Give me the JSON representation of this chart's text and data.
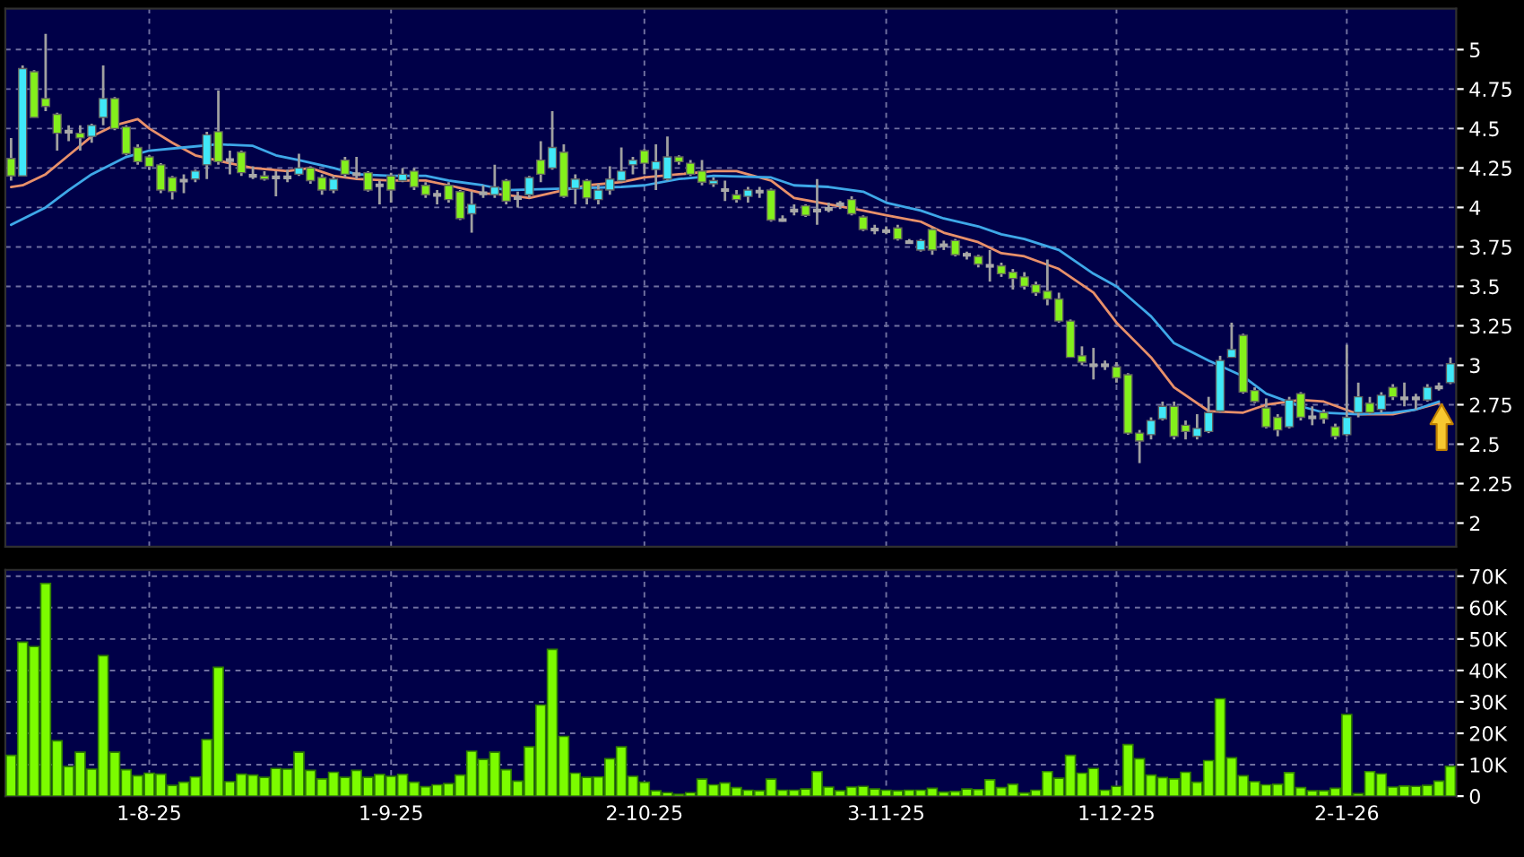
{
  "chart_data": [
    {
      "type": "candlestick",
      "categories": [
        null,
        null,
        null,
        null,
        null,
        null,
        null,
        null,
        null,
        null,
        null,
        null,
        null,
        null,
        null,
        null,
        null,
        null,
        null,
        null,
        null,
        null,
        null,
        null,
        null,
        null,
        null,
        null,
        null,
        null,
        null,
        null,
        null,
        null,
        null,
        null,
        null,
        null,
        null,
        null,
        null,
        null,
        null,
        null,
        null,
        null,
        null,
        null,
        null,
        null,
        null,
        null,
        null,
        null,
        null,
        null,
        null,
        null,
        null,
        null,
        null,
        null,
        null,
        null,
        null,
        null,
        null,
        null,
        null,
        null,
        null,
        null,
        null,
        null,
        null,
        null,
        null,
        null,
        null,
        null,
        null,
        null,
        null,
        null,
        null,
        null,
        null,
        null,
        null,
        null,
        null,
        null,
        null,
        null,
        null,
        null,
        null,
        null,
        null,
        null,
        null,
        null,
        null,
        null,
        null,
        null,
        null,
        null,
        null,
        null,
        null,
        null,
        null,
        null,
        null,
        null,
        null,
        null,
        null,
        null,
        null,
        null,
        null,
        null,
        null,
        null
      ],
      "ohlc": [
        [
          4.31,
          4.44,
          4.17,
          4.2
        ],
        [
          4.2,
          4.9,
          4.2,
          4.88
        ],
        [
          4.86,
          4.87,
          4.57,
          4.57
        ],
        [
          4.69,
          5.1,
          4.61,
          4.64
        ],
        [
          4.59,
          4.6,
          4.36,
          4.47
        ],
        [
          4.48,
          4.52,
          4.42,
          4.48
        ],
        [
          4.47,
          4.52,
          4.36,
          4.44
        ],
        [
          4.45,
          4.53,
          4.41,
          4.52
        ],
        [
          4.57,
          4.9,
          4.52,
          4.69
        ],
        [
          4.69,
          4.7,
          4.49,
          4.5
        ],
        [
          4.51,
          4.52,
          4.33,
          4.34
        ],
        [
          4.38,
          4.4,
          4.27,
          4.29
        ],
        [
          4.32,
          4.33,
          4.24,
          4.26
        ],
        [
          4.27,
          4.28,
          4.09,
          4.11
        ],
        [
          4.19,
          4.2,
          4.05,
          4.1
        ],
        [
          4.17,
          4.21,
          4.09,
          4.17
        ],
        [
          4.18,
          4.24,
          4.16,
          4.23
        ],
        [
          4.27,
          4.48,
          4.18,
          4.46
        ],
        [
          4.48,
          4.74,
          4.27,
          4.29
        ],
        [
          4.3,
          4.36,
          4.21,
          4.3
        ],
        [
          4.35,
          4.36,
          4.2,
          4.22
        ],
        [
          4.2,
          4.26,
          4.18,
          4.2
        ],
        [
          4.2,
          4.23,
          4.17,
          4.18
        ],
        [
          4.19,
          4.23,
          4.07,
          4.19
        ],
        [
          4.19,
          4.24,
          4.16,
          4.19
        ],
        [
          4.21,
          4.34,
          4.2,
          4.25
        ],
        [
          4.25,
          4.26,
          4.15,
          4.17
        ],
        [
          4.19,
          4.21,
          4.08,
          4.11
        ],
        [
          4.11,
          4.2,
          4.09,
          4.18
        ],
        [
          4.3,
          4.32,
          4.19,
          4.21
        ],
        [
          4.21,
          4.32,
          4.18,
          4.21
        ],
        [
          4.22,
          4.23,
          4.1,
          4.11
        ],
        [
          4.14,
          4.17,
          4.02,
          4.14
        ],
        [
          4.2,
          4.22,
          4.03,
          4.11
        ],
        [
          4.17,
          4.25,
          4.16,
          4.21
        ],
        [
          4.23,
          4.25,
          4.11,
          4.13
        ],
        [
          4.14,
          4.16,
          4.06,
          4.08
        ],
        [
          4.08,
          4.11,
          4.02,
          4.08
        ],
        [
          4.14,
          4.16,
          4.03,
          4.05
        ],
        [
          4.1,
          4.11,
          3.92,
          3.93
        ],
        [
          3.96,
          4.1,
          3.84,
          4.02
        ],
        [
          4.09,
          4.14,
          4.06,
          4.09
        ],
        [
          4.08,
          4.27,
          4.06,
          4.13
        ],
        [
          4.17,
          4.18,
          4.02,
          4.04
        ],
        [
          4.06,
          4.1,
          4.0,
          4.06
        ],
        [
          4.08,
          4.2,
          4.06,
          4.19
        ],
        [
          4.3,
          4.42,
          4.16,
          4.21
        ],
        [
          4.25,
          4.61,
          4.24,
          4.38
        ],
        [
          4.35,
          4.4,
          4.06,
          4.07
        ],
        [
          4.12,
          4.21,
          4.02,
          4.18
        ],
        [
          4.17,
          4.18,
          4.02,
          4.06
        ],
        [
          4.05,
          4.15,
          4.02,
          4.11
        ],
        [
          4.11,
          4.26,
          4.08,
          4.18
        ],
        [
          4.17,
          4.38,
          4.16,
          4.23
        ],
        [
          4.27,
          4.32,
          4.21,
          4.3
        ],
        [
          4.36,
          4.37,
          4.21,
          4.28
        ],
        [
          4.24,
          4.4,
          4.11,
          4.29
        ],
        [
          4.18,
          4.45,
          4.17,
          4.32
        ],
        [
          4.32,
          4.33,
          4.27,
          4.29
        ],
        [
          4.28,
          4.3,
          4.2,
          4.21
        ],
        [
          4.23,
          4.3,
          4.14,
          4.16
        ],
        [
          4.15,
          4.19,
          4.13,
          4.17
        ],
        [
          4.11,
          4.17,
          4.04,
          4.11
        ],
        [
          4.08,
          4.11,
          4.03,
          4.05
        ],
        [
          4.07,
          4.13,
          4.03,
          4.11
        ],
        [
          4.1,
          4.13,
          4.06,
          4.1
        ],
        [
          4.11,
          4.12,
          3.91,
          3.92
        ],
        [
          3.92,
          3.95,
          3.91,
          3.92
        ],
        [
          3.98,
          4.02,
          3.95,
          3.98
        ],
        [
          4.01,
          4.02,
          3.94,
          3.95
        ],
        [
          3.98,
          4.18,
          3.89,
          3.98
        ],
        [
          3.99,
          4.03,
          3.97,
          3.99
        ],
        [
          4.02,
          4.04,
          3.99,
          4.02
        ],
        [
          4.05,
          4.07,
          3.95,
          3.96
        ],
        [
          3.94,
          3.95,
          3.85,
          3.86
        ],
        [
          3.86,
          3.89,
          3.83,
          3.86
        ],
        [
          3.85,
          3.88,
          3.83,
          3.85
        ],
        [
          3.87,
          3.89,
          3.79,
          3.8
        ],
        [
          3.78,
          3.8,
          3.77,
          3.78
        ],
        [
          3.73,
          3.8,
          3.72,
          3.79
        ],
        [
          3.86,
          3.87,
          3.7,
          3.73
        ],
        [
          3.76,
          3.79,
          3.73,
          3.76
        ],
        [
          3.79,
          3.8,
          3.69,
          3.7
        ],
        [
          3.7,
          3.72,
          3.67,
          3.7
        ],
        [
          3.69,
          3.7,
          3.62,
          3.64
        ],
        [
          3.63,
          3.73,
          3.53,
          3.63
        ],
        [
          3.63,
          3.65,
          3.56,
          3.58
        ],
        [
          3.59,
          3.61,
          3.48,
          3.55
        ],
        [
          3.56,
          3.59,
          3.48,
          3.5
        ],
        [
          3.51,
          3.53,
          3.44,
          3.46
        ],
        [
          3.47,
          3.67,
          3.38,
          3.42
        ],
        [
          3.42,
          3.46,
          3.27,
          3.28
        ],
        [
          3.28,
          3.29,
          3.05,
          3.05
        ],
        [
          3.06,
          3.12,
          3.0,
          3.02
        ],
        [
          3.0,
          3.11,
          2.91,
          3.0
        ],
        [
          3.0,
          3.03,
          2.97,
          3.0
        ],
        [
          2.99,
          3.02,
          2.89,
          2.92
        ],
        [
          2.94,
          2.95,
          2.56,
          2.57
        ],
        [
          2.57,
          2.59,
          2.38,
          2.52
        ],
        [
          2.56,
          2.67,
          2.53,
          2.65
        ],
        [
          2.66,
          2.77,
          2.65,
          2.74
        ],
        [
          2.74,
          2.77,
          2.53,
          2.55
        ],
        [
          2.62,
          2.65,
          2.53,
          2.58
        ],
        [
          2.55,
          2.69,
          2.53,
          2.6
        ],
        [
          2.58,
          2.8,
          2.57,
          2.7
        ],
        [
          2.71,
          3.06,
          2.7,
          3.03
        ],
        [
          3.05,
          3.27,
          3.05,
          3.1
        ],
        [
          3.19,
          3.2,
          2.82,
          2.83
        ],
        [
          2.84,
          2.86,
          2.76,
          2.77
        ],
        [
          2.73,
          2.79,
          2.6,
          2.61
        ],
        [
          2.67,
          2.69,
          2.55,
          2.59
        ],
        [
          2.61,
          2.8,
          2.6,
          2.78
        ],
        [
          2.82,
          2.83,
          2.65,
          2.67
        ],
        [
          2.67,
          2.74,
          2.62,
          2.67
        ],
        [
          2.7,
          2.72,
          2.63,
          2.66
        ],
        [
          2.61,
          2.63,
          2.53,
          2.55
        ],
        [
          2.56,
          3.13,
          2.55,
          2.67
        ],
        [
          2.7,
          2.89,
          2.67,
          2.8
        ],
        [
          2.76,
          2.8,
          2.69,
          2.7
        ],
        [
          2.72,
          2.83,
          2.7,
          2.81
        ],
        [
          2.86,
          2.88,
          2.78,
          2.8
        ],
        [
          2.79,
          2.89,
          2.74,
          2.79
        ],
        [
          2.79,
          2.82,
          2.72,
          2.79
        ],
        [
          2.78,
          2.88,
          2.77,
          2.86
        ],
        [
          2.86,
          2.89,
          2.84,
          2.86
        ],
        [
          2.89,
          3.05,
          2.88,
          3.01
        ]
      ],
      "colors": [
        "#84f01c",
        "#40e8f8",
        "#84f01c",
        "#84f01c",
        "#84f01c",
        "#a8a8a8",
        "#84f01c",
        "#40e8f8",
        "#40e8f8",
        "#84f01c",
        "#84f01c",
        "#84f01c",
        "#84f01c",
        "#84f01c",
        "#84f01c",
        "#a8a8a8",
        "#40e8f8",
        "#40e8f8",
        "#84f01c",
        "#a8a8a8",
        "#84f01c",
        "#a8a8a8",
        "#84f01c",
        "#a8a8a8",
        "#a8a8a8",
        "#40e8f8",
        "#84f01c",
        "#84f01c",
        "#40e8f8",
        "#84f01c",
        "#a8a8a8",
        "#84f01c",
        "#a8a8a8",
        "#84f01c",
        "#40e8f8",
        "#84f01c",
        "#84f01c",
        "#a8a8a8",
        "#84f01c",
        "#84f01c",
        "#40e8f8",
        "#a8a8a8",
        "#40e8f8",
        "#84f01c",
        "#a8a8a8",
        "#40e8f8",
        "#84f01c",
        "#40e8f8",
        "#84f01c",
        "#40e8f8",
        "#84f01c",
        "#40e8f8",
        "#40e8f8",
        "#40e8f8",
        "#40e8f8",
        "#84f01c",
        "#40e8f8",
        "#40e8f8",
        "#84f01c",
        "#84f01c",
        "#84f01c",
        "#40e8f8",
        "#a8a8a8",
        "#84f01c",
        "#40e8f8",
        "#a8a8a8",
        "#84f01c",
        "#a8a8a8",
        "#a8a8a8",
        "#84f01c",
        "#a8a8a8",
        "#a8a8a8",
        "#a8a8a8",
        "#84f01c",
        "#84f01c",
        "#a8a8a8",
        "#a8a8a8",
        "#84f01c",
        "#a8a8a8",
        "#40e8f8",
        "#84f01c",
        "#a8a8a8",
        "#84f01c",
        "#a8a8a8",
        "#84f01c",
        "#a8a8a8",
        "#84f01c",
        "#84f01c",
        "#84f01c",
        "#84f01c",
        "#84f01c",
        "#84f01c",
        "#84f01c",
        "#84f01c",
        "#a8a8a8",
        "#a8a8a8",
        "#84f01c",
        "#84f01c",
        "#84f01c",
        "#40e8f8",
        "#40e8f8",
        "#84f01c",
        "#84f01c",
        "#40e8f8",
        "#40e8f8",
        "#40e8f8",
        "#40e8f8",
        "#84f01c",
        "#84f01c",
        "#84f01c",
        "#84f01c",
        "#40e8f8",
        "#84f01c",
        "#a8a8a8",
        "#84f01c",
        "#84f01c",
        "#40e8f8",
        "#40e8f8",
        "#84f01c",
        "#40e8f8",
        "#84f01c",
        "#a8a8a8",
        "#a8a8a8",
        "#40e8f8",
        "#a8a8a8",
        "#40e8f8"
      ],
      "series": [
        {
          "type": "line",
          "color": "#e8906a",
          "values": [
            4.13,
            4.14,
            null,
            4.21,
            null,
            4.33,
            null,
            4.45,
            null,
            4.52,
            null,
            4.56,
            4.5,
            null,
            4.41,
            null,
            4.33,
            null,
            null,
            4.28,
            null,
            4.25,
            null,
            null,
            4.23,
            null,
            4.25,
            null,
            4.2,
            null,
            4.18,
            null,
            null,
            4.17,
            null,
            null,
            4.17,
            null,
            4.14,
            null,
            null,
            4.09,
            null,
            4.08,
            null,
            4.06,
            null,
            null,
            4.11,
            null,
            4.14,
            null,
            null,
            4.16,
            null,
            4.19,
            null,
            null,
            4.21,
            null,
            null,
            4.23,
            null,
            4.23,
            null,
            null,
            4.17,
            null,
            4.06,
            null,
            null,
            4.02,
            null,
            null,
            3.98,
            null,
            3.95,
            null,
            null,
            3.91,
            null,
            3.84,
            null,
            null,
            3.78,
            null,
            3.71,
            null,
            3.69,
            null,
            null,
            3.61,
            null,
            null,
            3.46,
            null,
            3.27,
            null,
            null,
            3.05,
            null,
            2.86,
            null,
            null,
            2.71,
            null,
            null,
            2.7,
            null,
            2.75,
            null,
            null,
            2.78,
            null,
            2.77,
            null,
            null,
            2.69,
            null,
            null,
            2.69,
            null,
            2.72,
            null,
            2.76,
            null
          ]
        },
        {
          "type": "line",
          "color": "#3ea8e8",
          "values": [
            3.89,
            null,
            null,
            4.0,
            null,
            4.11,
            null,
            4.21,
            null,
            null,
            4.32,
            null,
            4.36,
            null,
            null,
            4.38,
            null,
            null,
            4.4,
            null,
            null,
            4.39,
            null,
            4.33,
            null,
            4.3,
            null,
            null,
            4.25,
            null,
            4.21,
            null,
            null,
            4.2,
            null,
            null,
            4.2,
            null,
            4.17,
            null,
            null,
            4.14,
            null,
            4.11,
            null,
            null,
            null,
            null,
            4.12,
            null,
            null,
            null,
            null,
            4.13,
            null,
            4.14,
            null,
            null,
            4.18,
            null,
            null,
            4.2,
            null,
            null,
            null,
            null,
            4.19,
            null,
            4.14,
            null,
            null,
            4.13,
            null,
            null,
            4.1,
            null,
            4.03,
            null,
            null,
            3.98,
            null,
            3.93,
            null,
            null,
            3.88,
            null,
            3.83,
            null,
            3.8,
            null,
            null,
            3.73,
            null,
            null,
            3.58,
            null,
            3.5,
            null,
            null,
            3.31,
            null,
            3.14,
            null,
            null,
            3.03,
            null,
            null,
            2.93,
            null,
            2.82,
            null,
            null,
            2.74,
            null,
            2.7,
            null,
            null,
            2.69,
            null,
            null,
            2.7,
            null,
            2.72,
            null,
            2.77,
            null
          ]
        }
      ],
      "ylim": [
        1.85,
        5.26
      ],
      "yticks": [
        2,
        2.25,
        2.5,
        2.75,
        3,
        3.25,
        3.5,
        3.75,
        4,
        4.25,
        4.5,
        4.75,
        5
      ],
      "grid": true,
      "tick_labels": "y"
    },
    {
      "type": "bar",
      "categories": [
        null,
        null,
        null,
        null,
        null,
        null,
        null,
        null,
        null,
        null,
        null,
        null,
        "1-8-25",
        null,
        null,
        null,
        null,
        null,
        null,
        null,
        null,
        null,
        null,
        null,
        null,
        null,
        null,
        null,
        null,
        null,
        null,
        null,
        null,
        "1-9-25",
        null,
        null,
        null,
        null,
        null,
        null,
        null,
        null,
        null,
        null,
        null,
        null,
        null,
        null,
        null,
        null,
        null,
        null,
        null,
        null,
        null,
        "2-10-25",
        null,
        null,
        null,
        null,
        null,
        null,
        null,
        null,
        null,
        null,
        null,
        null,
        null,
        null,
        null,
        null,
        null,
        null,
        null,
        null,
        "3-11-25",
        null,
        null,
        null,
        null,
        null,
        null,
        null,
        null,
        null,
        null,
        null,
        null,
        null,
        null,
        null,
        null,
        null,
        null,
        null,
        "1-12-25",
        null,
        null,
        null,
        null,
        null,
        null,
        null,
        null,
        null,
        null,
        null,
        null,
        null,
        null,
        null,
        null,
        null,
        null,
        null,
        "2-1-26",
        null,
        null,
        null,
        null,
        null,
        null,
        null,
        null,
        null
      ],
      "values": [
        13000,
        49000,
        47600,
        67700,
        17600,
        9400,
        14000,
        8600,
        44700,
        14000,
        8400,
        6500,
        7300,
        7000,
        3400,
        4400,
        6100,
        18000,
        41000,
        4600,
        7000,
        6700,
        6000,
        8800,
        8600,
        14000,
        8200,
        5500,
        7600,
        6000,
        8200,
        6000,
        6900,
        6300,
        6900,
        4400,
        3000,
        3600,
        4000,
        6700,
        14300,
        11700,
        14000,
        8400,
        4800,
        15700,
        29000,
        46700,
        19000,
        7300,
        6000,
        6100,
        11900,
        15700,
        6300,
        4400,
        1700,
        1100,
        600,
        1100,
        5400,
        3600,
        4200,
        2700,
        1900,
        1700,
        5400,
        1900,
        1900,
        2300,
        7800,
        2900,
        1700,
        2900,
        3100,
        2300,
        1900,
        1700,
        1900,
        1900,
        2500,
        1300,
        1500,
        2300,
        2100,
        5200,
        2700,
        3800,
        1000,
        1900,
        7800,
        5700,
        13000,
        7300,
        8800,
        1900,
        3100,
        16400,
        11900,
        6700,
        5900,
        5500,
        7600,
        4400,
        11300,
        31000,
        12200,
        6500,
        4600,
        3600,
        3800,
        7500,
        2700,
        1700,
        1700,
        2500,
        26000,
        800,
        7800,
        7100,
        2900,
        3200,
        3100,
        3400,
        4800,
        9500
      ],
      "color": "#7cfc00",
      "ylim": [
        0,
        72000
      ],
      "yticks": [
        0,
        {
          "value": 10000,
          "label": "10K"
        },
        {
          "value": 20000,
          "label": "20K"
        },
        {
          "value": 30000,
          "label": "30K"
        },
        {
          "value": 40000,
          "label": "40K"
        },
        {
          "value": 50000,
          "label": "50K"
        },
        {
          "value": 60000,
          "label": "60K"
        },
        {
          "value": 70000,
          "label": "70K"
        }
      ],
      "grid": true
    }
  ]
}
